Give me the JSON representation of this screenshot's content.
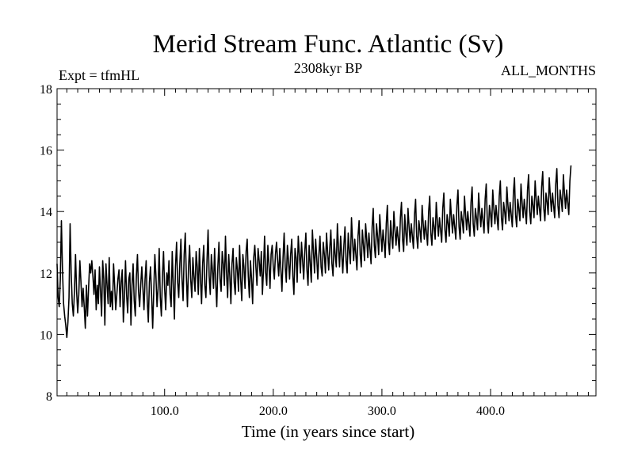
{
  "chart_data": {
    "type": "line",
    "title": "Merid Stream Func. Atlantic (Sv)",
    "subtitle_left": "Expt = tfmHL",
    "subtitle_center": "2308kyr BP",
    "subtitle_right": "ALL_MONTHS",
    "xlabel": "Time (in years since start)",
    "ylabel": "",
    "xlim": [
      1,
      497
    ],
    "ylim": [
      8,
      18
    ],
    "x_ticks": [
      100,
      200,
      300,
      400
    ],
    "x_tick_labels": [
      "100.0",
      "200.0",
      "300.0",
      "400.0"
    ],
    "y_ticks": [
      8,
      10,
      12,
      14,
      16,
      18
    ],
    "y_tick_labels": [
      "8",
      "10",
      "12",
      "14",
      "16",
      "18"
    ],
    "x_start": 1,
    "x_step": 1,
    "series": [
      {
        "name": "Merid Stream Func. Atlantic",
        "color": "#000000",
        "values": [
          12.3,
          11.2,
          10.9,
          11.8,
          13.7,
          12.1,
          11.0,
          10.6,
          10.3,
          9.9,
          10.4,
          11.2,
          13.6,
          12.0,
          11.0,
          10.6,
          11.4,
          12.6,
          11.4,
          10.7,
          11.3,
          12.4,
          11.7,
          10.9,
          11.5,
          10.9,
          10.2,
          11.6,
          10.6,
          11.5,
          12.3,
          12.0,
          12.4,
          11.9,
          11.3,
          12.1,
          10.8,
          11.6,
          11.0,
          12.2,
          11.4,
          10.6,
          12.4,
          11.8,
          10.3,
          12.3,
          11.6,
          11.0,
          12.5,
          10.9,
          11.4,
          10.8,
          12.3,
          11.6,
          10.8,
          11.3,
          11.8,
          12.1,
          10.9,
          11.7,
          12.1,
          10.4,
          11.2,
          12.4,
          11.3,
          10.7,
          11.8,
          12.0,
          10.3,
          11.6,
          12.3,
          11.1,
          10.6,
          11.9,
          12.6,
          11.4,
          10.9,
          11.6,
          12.2,
          11.5,
          10.8,
          11.8,
          12.4,
          11.1,
          10.4,
          11.7,
          12.2,
          11.3,
          10.2,
          11.4,
          12.6,
          11.9,
          10.9,
          11.5,
          12.8,
          11.2,
          10.6,
          11.9,
          12.7,
          11.5,
          10.8,
          12.0,
          11.6,
          12.4,
          11.3,
          10.9,
          12.7,
          11.6,
          10.5,
          12.2,
          13.0,
          11.7,
          11.2,
          12.3,
          13.1,
          11.8,
          11.1,
          12.6,
          13.3,
          11.9,
          10.9,
          12.2,
          12.9,
          11.8,
          11.2,
          12.5,
          11.9,
          11.4,
          12.7,
          12.2,
          11.3,
          12.8,
          11.8,
          11.0,
          12.3,
          12.9,
          11.6,
          11.2,
          12.4,
          13.4,
          11.9,
          11.3,
          12.6,
          12.1,
          11.5,
          12.8,
          11.7,
          10.9,
          12.2,
          13.0,
          11.8,
          11.4,
          12.7,
          12.3,
          11.6,
          13.2,
          12.0,
          11.2,
          12.6,
          11.9,
          11.0,
          12.3,
          12.8,
          11.7,
          11.3,
          12.5,
          12.1,
          11.4,
          12.9,
          11.8,
          11.1,
          12.6,
          12.2,
          11.5,
          12.7,
          13.1,
          11.9,
          11.2,
          12.4,
          11.8,
          11.0,
          12.5,
          12.9,
          12.2,
          11.6,
          12.8,
          12.4,
          11.9,
          12.7,
          11.3,
          12.1,
          13.2,
          12.0,
          11.6,
          12.9,
          12.3,
          11.5,
          12.6,
          12.9,
          12.2,
          11.8,
          12.6,
          13.0,
          12.4,
          11.9,
          12.8,
          12.1,
          11.4,
          12.5,
          13.3,
          12.2,
          11.7,
          12.9,
          12.4,
          11.8,
          12.6,
          13.1,
          11.9,
          11.3,
          12.8,
          12.5,
          11.7,
          13.2,
          12.6,
          12.0,
          13.0,
          12.4,
          11.8,
          12.7,
          13.3,
          12.1,
          11.6,
          12.9,
          12.3,
          11.7,
          13.4,
          12.7,
          12.0,
          13.1,
          12.5,
          11.8,
          12.6,
          13.2,
          12.2,
          11.9,
          13.0,
          12.6,
          12.0,
          13.3,
          12.7,
          12.1,
          12.8,
          13.4,
          12.3,
          11.9,
          13.1,
          12.6,
          12.2,
          13.6,
          12.8,
          12.2,
          13.2,
          12.6,
          12.0,
          12.9,
          13.5,
          12.4,
          12.0,
          13.3,
          12.7,
          12.3,
          13.8,
          13.0,
          12.4,
          13.1,
          12.6,
          12.1,
          13.2,
          13.7,
          12.6,
          12.2,
          13.4,
          12.9,
          12.4,
          13.6,
          13.1,
          12.5,
          13.3,
          12.8,
          12.3,
          13.5,
          14.1,
          12.9,
          12.5,
          13.6,
          13.2,
          12.6,
          13.9,
          13.3,
          12.7,
          13.4,
          13.0,
          12.5,
          13.6,
          14.2,
          13.0,
          12.6,
          13.7,
          13.2,
          12.8,
          14.0,
          13.4,
          12.9,
          13.5,
          13.1,
          12.7,
          13.8,
          14.3,
          13.1,
          12.7,
          13.9,
          13.3,
          12.9,
          14.1,
          13.5,
          13.0,
          13.6,
          13.2,
          12.8,
          13.9,
          14.4,
          13.2,
          12.8,
          13.7,
          13.4,
          13.0,
          14.2,
          13.6,
          13.1,
          13.7,
          13.3,
          12.9,
          14.0,
          14.5,
          13.3,
          12.9,
          13.8,
          13.5,
          13.1,
          14.3,
          13.7,
          13.2,
          13.8,
          13.4,
          13.0,
          14.1,
          14.6,
          13.4,
          13.0,
          13.9,
          13.6,
          13.2,
          14.4,
          13.8,
          13.3,
          13.9,
          13.5,
          13.1,
          14.2,
          14.7,
          13.5,
          13.1,
          14.0,
          13.7,
          13.3,
          14.5,
          13.9,
          13.4,
          14.0,
          13.6,
          13.2,
          14.3,
          14.8,
          13.6,
          13.2,
          14.1,
          13.8,
          13.4,
          14.6,
          14.0,
          13.5,
          14.1,
          13.7,
          13.3,
          14.4,
          14.9,
          13.7,
          13.3,
          14.2,
          13.9,
          13.5,
          14.7,
          14.1,
          13.6,
          14.2,
          13.8,
          13.4,
          14.5,
          15.0,
          13.8,
          13.4,
          14.3,
          14.0,
          13.6,
          14.8,
          14.2,
          13.7,
          14.3,
          13.9,
          13.5,
          14.6,
          15.1,
          13.9,
          13.5,
          14.4,
          14.1,
          13.7,
          14.9,
          14.3,
          13.8,
          14.4,
          14.0,
          13.6,
          14.7,
          15.2,
          14.0,
          13.6,
          14.5,
          14.2,
          13.8,
          15.0,
          14.4,
          13.9,
          14.5,
          14.1,
          13.7,
          14.8,
          15.3,
          14.1,
          13.7,
          14.6,
          14.3,
          13.9,
          15.1,
          14.5,
          14.0,
          14.6,
          14.2,
          13.8,
          14.9,
          15.4,
          14.2,
          13.8,
          14.7,
          14.4,
          14.0,
          15.2,
          14.6,
          14.1,
          14.7,
          14.3,
          13.9,
          15.0,
          15.5
        ]
      }
    ]
  }
}
